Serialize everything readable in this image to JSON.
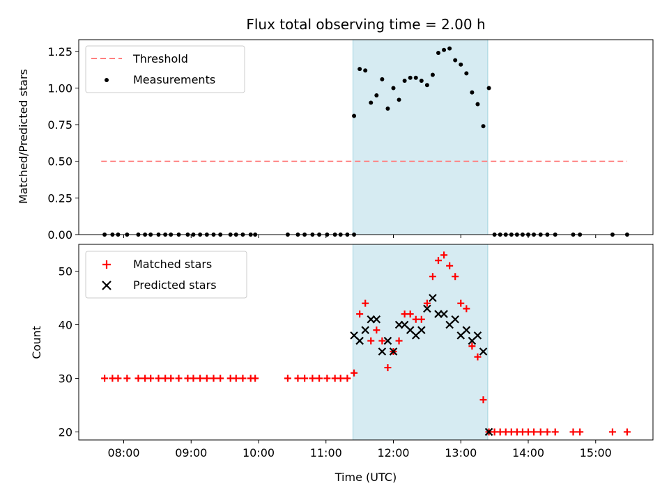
{
  "chart_data": [
    {
      "type": "scatter",
      "title": "Flux total observing time = 2.00 h",
      "xlabel": "",
      "ylabel": "Matched/Predicted stars",
      "ylim": [
        0,
        1.33
      ],
      "yticks": [
        "0.00",
        "0.25",
        "0.50",
        "0.75",
        "1.00",
        "1.25"
      ],
      "shaded_region": {
        "x_start": "11:24",
        "x_end": "13:24",
        "color": "#add8e6"
      },
      "legend": {
        "placement": "top-left"
      },
      "threshold": {
        "name": "Threshold",
        "value": 0.5,
        "x_start": "07:40",
        "x_end": "15:28",
        "color": "#ff7f7f"
      },
      "series": [
        {
          "name": "Measurements",
          "color": "#000000",
          "points": [
            [
              "07:43",
              0
            ],
            [
              "07:50",
              0
            ],
            [
              "07:55",
              0
            ],
            [
              "08:03",
              0
            ],
            [
              "08:13",
              0
            ],
            [
              "08:19",
              0
            ],
            [
              "08:24",
              0
            ],
            [
              "08:31",
              0
            ],
            [
              "08:37",
              0
            ],
            [
              "08:42",
              0
            ],
            [
              "08:49",
              0
            ],
            [
              "08:57",
              0
            ],
            [
              "09:02",
              0
            ],
            [
              "09:08",
              0
            ],
            [
              "09:14",
              0
            ],
            [
              "09:20",
              0
            ],
            [
              "09:26",
              0
            ],
            [
              "09:35",
              0
            ],
            [
              "09:40",
              0
            ],
            [
              "09:46",
              0
            ],
            [
              "09:53",
              0
            ],
            [
              "09:57",
              0
            ],
            [
              "10:26",
              0
            ],
            [
              "10:35",
              0
            ],
            [
              "10:41",
              0
            ],
            [
              "10:48",
              0
            ],
            [
              "10:54",
              0
            ],
            [
              "11:01",
              0
            ],
            [
              "11:08",
              0
            ],
            [
              "11:13",
              0
            ],
            [
              "11:19",
              0
            ],
            [
              "11:25",
              0
            ],
            [
              "11:25",
              0.81
            ],
            [
              "11:30",
              1.13
            ],
            [
              "11:35",
              1.12
            ],
            [
              "11:40",
              0.9
            ],
            [
              "11:45",
              0.95
            ],
            [
              "11:50",
              1.06
            ],
            [
              "11:55",
              0.86
            ],
            [
              "12:00",
              1.0
            ],
            [
              "12:05",
              0.92
            ],
            [
              "12:10",
              1.05
            ],
            [
              "12:15",
              1.07
            ],
            [
              "12:20",
              1.07
            ],
            [
              "12:25",
              1.05
            ],
            [
              "12:30",
              1.02
            ],
            [
              "12:35",
              1.09
            ],
            [
              "12:40",
              1.24
            ],
            [
              "12:45",
              1.26
            ],
            [
              "12:50",
              1.27
            ],
            [
              "12:55",
              1.19
            ],
            [
              "13:00",
              1.16
            ],
            [
              "13:05",
              1.1
            ],
            [
              "13:10",
              0.97
            ],
            [
              "13:15",
              0.89
            ],
            [
              "13:20",
              0.74
            ],
            [
              "13:25",
              1.0
            ],
            [
              "13:30",
              0
            ],
            [
              "13:35",
              0
            ],
            [
              "13:40",
              0
            ],
            [
              "13:45",
              0
            ],
            [
              "13:50",
              0
            ],
            [
              "13:55",
              0
            ],
            [
              "14:00",
              0
            ],
            [
              "14:05",
              0
            ],
            [
              "14:11",
              0
            ],
            [
              "14:17",
              0
            ],
            [
              "14:24",
              0
            ],
            [
              "14:40",
              0
            ],
            [
              "14:46",
              0
            ],
            [
              "15:15",
              0
            ],
            [
              "15:28",
              0
            ]
          ]
        }
      ]
    },
    {
      "type": "scatter",
      "title": "",
      "xlabel": "Time (UTC)",
      "ylabel": "Count",
      "ylim": [
        18.5,
        55
      ],
      "yticks": [
        "20",
        "30",
        "40",
        "50"
      ],
      "xlim": [
        "07:20",
        "15:51"
      ],
      "xticks": [
        "08:00",
        "09:00",
        "10:00",
        "11:00",
        "12:00",
        "13:00",
        "14:00",
        "15:00"
      ],
      "shaded_region": {
        "x_start": "11:24",
        "x_end": "13:24",
        "color": "#add8e6"
      },
      "legend": {
        "placement": "top-left"
      },
      "series": [
        {
          "name": "Matched stars",
          "color": "#ff0000",
          "marker": "+",
          "points": [
            [
              "07:43",
              30
            ],
            [
              "07:50",
              30
            ],
            [
              "07:55",
              30
            ],
            [
              "08:03",
              30
            ],
            [
              "08:13",
              30
            ],
            [
              "08:19",
              30
            ],
            [
              "08:24",
              30
            ],
            [
              "08:31",
              30
            ],
            [
              "08:37",
              30
            ],
            [
              "08:42",
              30
            ],
            [
              "08:49",
              30
            ],
            [
              "08:57",
              30
            ],
            [
              "09:02",
              30
            ],
            [
              "09:08",
              30
            ],
            [
              "09:14",
              30
            ],
            [
              "09:20",
              30
            ],
            [
              "09:26",
              30
            ],
            [
              "09:35",
              30
            ],
            [
              "09:40",
              30
            ],
            [
              "09:46",
              30
            ],
            [
              "09:53",
              30
            ],
            [
              "09:57",
              30
            ],
            [
              "10:26",
              30
            ],
            [
              "10:35",
              30
            ],
            [
              "10:41",
              30
            ],
            [
              "10:48",
              30
            ],
            [
              "10:54",
              30
            ],
            [
              "11:01",
              30
            ],
            [
              "11:08",
              30
            ],
            [
              "11:13",
              30
            ],
            [
              "11:19",
              30
            ],
            [
              "11:25",
              31
            ],
            [
              "11:30",
              42
            ],
            [
              "11:35",
              44
            ],
            [
              "11:40",
              37
            ],
            [
              "11:45",
              39
            ],
            [
              "11:50",
              37
            ],
            [
              "11:55",
              32
            ],
            [
              "12:00",
              35
            ],
            [
              "12:05",
              37
            ],
            [
              "12:10",
              42
            ],
            [
              "12:15",
              42
            ],
            [
              "12:20",
              41
            ],
            [
              "12:25",
              41
            ],
            [
              "12:30",
              44
            ],
            [
              "12:35",
              49
            ],
            [
              "12:40",
              52
            ],
            [
              "12:45",
              53
            ],
            [
              "12:50",
              51
            ],
            [
              "12:55",
              49
            ],
            [
              "13:00",
              44
            ],
            [
              "13:05",
              43
            ],
            [
              "13:10",
              36
            ],
            [
              "13:15",
              34
            ],
            [
              "13:20",
              26
            ],
            [
              "13:25",
              20
            ],
            [
              "13:30",
              20
            ],
            [
              "13:35",
              20
            ],
            [
              "13:40",
              20
            ],
            [
              "13:45",
              20
            ],
            [
              "13:50",
              20
            ],
            [
              "13:55",
              20
            ],
            [
              "14:00",
              20
            ],
            [
              "14:05",
              20
            ],
            [
              "14:11",
              20
            ],
            [
              "14:17",
              20
            ],
            [
              "14:24",
              20
            ],
            [
              "14:40",
              20
            ],
            [
              "14:46",
              20
            ],
            [
              "15:15",
              20
            ],
            [
              "15:28",
              20
            ]
          ]
        },
        {
          "name": "Predicted stars",
          "color": "#000000",
          "marker": "x",
          "points": [
            [
              "11:25",
              38
            ],
            [
              "11:30",
              37
            ],
            [
              "11:35",
              39
            ],
            [
              "11:40",
              41
            ],
            [
              "11:45",
              41
            ],
            [
              "11:50",
              35
            ],
            [
              "11:55",
              37
            ],
            [
              "12:00",
              35
            ],
            [
              "12:05",
              40
            ],
            [
              "12:10",
              40
            ],
            [
              "12:15",
              39
            ],
            [
              "12:20",
              38
            ],
            [
              "12:25",
              39
            ],
            [
              "12:30",
              43
            ],
            [
              "12:35",
              45
            ],
            [
              "12:40",
              42
            ],
            [
              "12:45",
              42
            ],
            [
              "12:50",
              40
            ],
            [
              "12:55",
              41
            ],
            [
              "13:00",
              38
            ],
            [
              "13:05",
              39
            ],
            [
              "13:10",
              37
            ],
            [
              "13:15",
              38
            ],
            [
              "13:20",
              35
            ],
            [
              "13:25",
              20
            ]
          ]
        }
      ]
    }
  ]
}
